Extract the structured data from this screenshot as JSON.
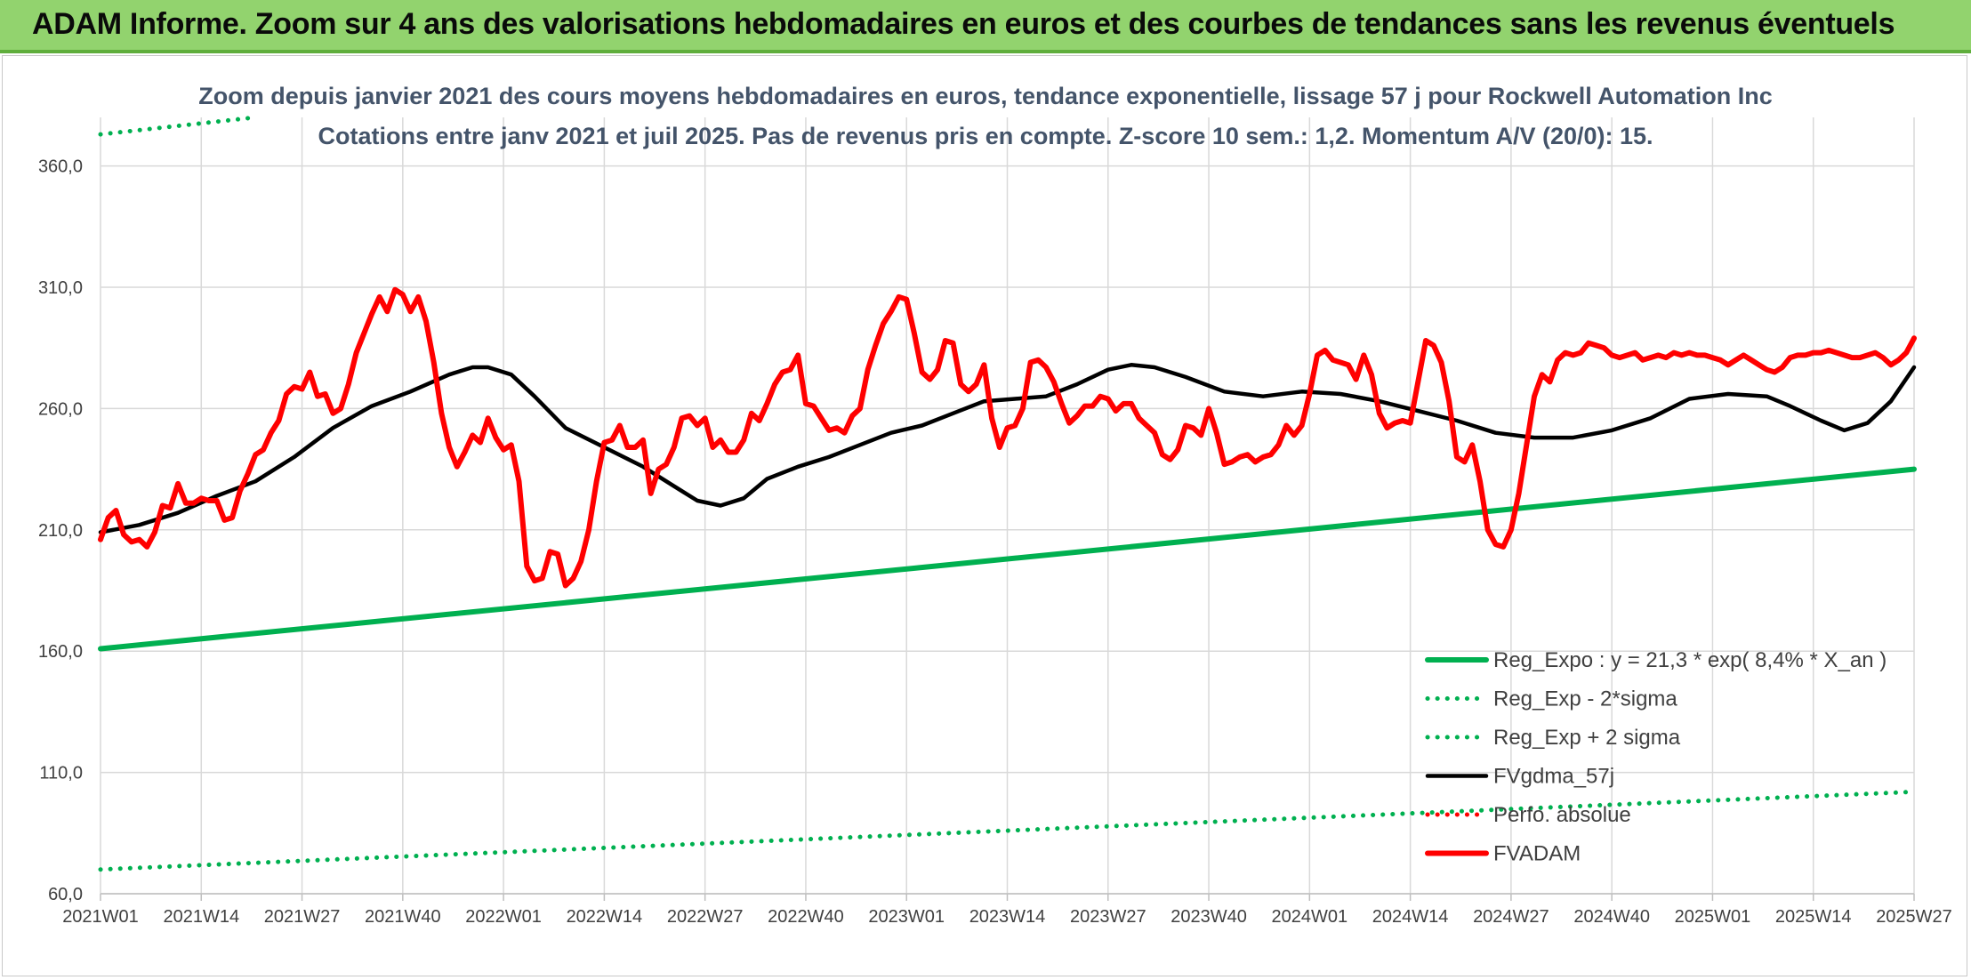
{
  "header": {
    "title": "ADAM Informe. Zoom sur 4 ans des valorisations hebdomadaires en euros et des courbes de tendances sans les revenus éventuels"
  },
  "chart_data": {
    "type": "line",
    "title": "Zoom depuis janvier 2021 des cours moyens hebdomadaires en euros, tendance exponentielle, lissage 57 j pour Rockwell Automation Inc",
    "subtitle": "Cotations entre janv 2021 et juil 2025. Pas de revenus pris en compte. Z-score 10 sem.: 1,2. Momentum A/V (20/0): 15.",
    "xlabel": "",
    "ylabel": "",
    "ylim": [
      60,
      380
    ],
    "yticks": [
      "60,0",
      "110,0",
      "160,0",
      "210,0",
      "260,0",
      "310,0",
      "360,0"
    ],
    "x_range": [
      0,
      234
    ],
    "xticks": [
      {
        "x": 0,
        "label": "2021W01"
      },
      {
        "x": 13,
        "label": "2021W14"
      },
      {
        "x": 26,
        "label": "2021W27"
      },
      {
        "x": 39,
        "label": "2021W40"
      },
      {
        "x": 52,
        "label": "2022W01"
      },
      {
        "x": 65,
        "label": "2022W14"
      },
      {
        "x": 78,
        "label": "2022W27"
      },
      {
        "x": 91,
        "label": "2022W40"
      },
      {
        "x": 104,
        "label": "2023W01"
      },
      {
        "x": 117,
        "label": "2023W14"
      },
      {
        "x": 130,
        "label": "2023W27"
      },
      {
        "x": 143,
        "label": "2023W40"
      },
      {
        "x": 156,
        "label": "2024W01"
      },
      {
        "x": 169,
        "label": "2024W14"
      },
      {
        "x": 182,
        "label": "2024W27"
      },
      {
        "x": 195,
        "label": "2024W40"
      },
      {
        "x": 208,
        "label": "2025W01"
      },
      {
        "x": 221,
        "label": "2025W14"
      },
      {
        "x": 234,
        "label": "2025W27"
      }
    ],
    "grid": true,
    "legend_position": "bottom-right",
    "series": [
      {
        "name": "Reg_Expo : y = 21,3 * exp( 8,4% *  X_an )",
        "color": "#00b050",
        "style": "solid-thick",
        "points": [
          [
            0,
            161
          ],
          [
            234,
            235
          ]
        ]
      },
      {
        "name": "Reg_Exp - 2*sigma",
        "color": "#00b050",
        "style": "dotted",
        "points": [
          [
            0,
            70
          ],
          [
            234,
            102
          ]
        ]
      },
      {
        "name": "Reg_Exp + 2 sigma",
        "color": "#00b050",
        "style": "dotted",
        "points": [
          [
            0,
            373
          ],
          [
            20,
            380
          ]
        ]
      },
      {
        "name": "FVgdma_57j",
        "color": "#000000",
        "style": "solid",
        "points": [
          [
            0,
            209
          ],
          [
            5,
            212
          ],
          [
            10,
            217
          ],
          [
            15,
            224
          ],
          [
            20,
            230
          ],
          [
            25,
            240
          ],
          [
            30,
            252
          ],
          [
            35,
            261
          ],
          [
            40,
            267
          ],
          [
            45,
            274
          ],
          [
            48,
            277
          ],
          [
            50,
            277
          ],
          [
            53,
            274
          ],
          [
            56,
            265
          ],
          [
            60,
            252
          ],
          [
            65,
            244
          ],
          [
            70,
            236
          ],
          [
            74,
            228
          ],
          [
            77,
            222
          ],
          [
            80,
            220
          ],
          [
            83,
            223
          ],
          [
            86,
            231
          ],
          [
            90,
            236
          ],
          [
            94,
            240
          ],
          [
            98,
            245
          ],
          [
            102,
            250
          ],
          [
            106,
            253
          ],
          [
            110,
            258
          ],
          [
            114,
            263
          ],
          [
            118,
            264
          ],
          [
            122,
            265
          ],
          [
            126,
            270
          ],
          [
            130,
            276
          ],
          [
            133,
            278
          ],
          [
            136,
            277
          ],
          [
            140,
            273
          ],
          [
            145,
            267
          ],
          [
            150,
            265
          ],
          [
            155,
            267
          ],
          [
            160,
            266
          ],
          [
            165,
            263
          ],
          [
            170,
            259
          ],
          [
            175,
            255
          ],
          [
            180,
            250
          ],
          [
            185,
            248
          ],
          [
            190,
            248
          ],
          [
            195,
            251
          ],
          [
            200,
            256
          ],
          [
            205,
            264
          ],
          [
            210,
            266
          ],
          [
            215,
            265
          ],
          [
            218,
            261
          ],
          [
            222,
            255
          ],
          [
            225,
            251
          ],
          [
            228,
            254
          ],
          [
            231,
            263
          ],
          [
            234,
            277
          ]
        ]
      },
      {
        "name": "Perfo. absolue",
        "color": "#ff0000",
        "style": "dotted",
        "points": []
      },
      {
        "name": "FVADAM",
        "color": "#ff0000",
        "style": "solid-thick",
        "points": [
          [
            0,
            206
          ],
          [
            1,
            215
          ],
          [
            2,
            218
          ],
          [
            3,
            208
          ],
          [
            4,
            205
          ],
          [
            5,
            206
          ],
          [
            6,
            203
          ],
          [
            7,
            209
          ],
          [
            8,
            220
          ],
          [
            9,
            219
          ],
          [
            10,
            229
          ],
          [
            11,
            221
          ],
          [
            12,
            221
          ],
          [
            13,
            223
          ],
          [
            14,
            222
          ],
          [
            15,
            222
          ],
          [
            16,
            214
          ],
          [
            17,
            215
          ],
          [
            18,
            226
          ],
          [
            19,
            233
          ],
          [
            20,
            241
          ],
          [
            21,
            243
          ],
          [
            22,
            250
          ],
          [
            23,
            255
          ],
          [
            24,
            266
          ],
          [
            25,
            269
          ],
          [
            26,
            268
          ],
          [
            27,
            275
          ],
          [
            28,
            265
          ],
          [
            29,
            266
          ],
          [
            30,
            258
          ],
          [
            31,
            260
          ],
          [
            32,
            270
          ],
          [
            33,
            283
          ],
          [
            34,
            291
          ],
          [
            35,
            299
          ],
          [
            36,
            306
          ],
          [
            37,
            300
          ],
          [
            38,
            309
          ],
          [
            39,
            307
          ],
          [
            40,
            300
          ],
          [
            41,
            306
          ],
          [
            42,
            296
          ],
          [
            43,
            279
          ],
          [
            44,
            258
          ],
          [
            45,
            244
          ],
          [
            46,
            236
          ],
          [
            47,
            242
          ],
          [
            48,
            249
          ],
          [
            49,
            246
          ],
          [
            50,
            256
          ],
          [
            51,
            248
          ],
          [
            52,
            243
          ],
          [
            53,
            245
          ],
          [
            54,
            230
          ],
          [
            55,
            195
          ],
          [
            56,
            189
          ],
          [
            57,
            190
          ],
          [
            58,
            201
          ],
          [
            59,
            200
          ],
          [
            60,
            187
          ],
          [
            61,
            190
          ],
          [
            62,
            197
          ],
          [
            63,
            210
          ],
          [
            64,
            230
          ],
          [
            65,
            246
          ],
          [
            66,
            247
          ],
          [
            67,
            253
          ],
          [
            68,
            244
          ],
          [
            69,
            244
          ],
          [
            70,
            247
          ],
          [
            71,
            225
          ],
          [
            72,
            235
          ],
          [
            73,
            237
          ],
          [
            74,
            244
          ],
          [
            75,
            256
          ],
          [
            76,
            257
          ],
          [
            77,
            253
          ],
          [
            78,
            256
          ],
          [
            79,
            244
          ],
          [
            80,
            247
          ],
          [
            81,
            242
          ],
          [
            82,
            242
          ],
          [
            83,
            247
          ],
          [
            84,
            258
          ],
          [
            85,
            255
          ],
          [
            86,
            262
          ],
          [
            87,
            270
          ],
          [
            88,
            275
          ],
          [
            89,
            276
          ],
          [
            90,
            282
          ],
          [
            91,
            262
          ],
          [
            92,
            261
          ],
          [
            93,
            256
          ],
          [
            94,
            251
          ],
          [
            95,
            252
          ],
          [
            96,
            250
          ],
          [
            97,
            257
          ],
          [
            98,
            260
          ],
          [
            99,
            276
          ],
          [
            100,
            286
          ],
          [
            101,
            295
          ],
          [
            102,
            300
          ],
          [
            103,
            306
          ],
          [
            104,
            305
          ],
          [
            105,
            291
          ],
          [
            106,
            275
          ],
          [
            107,
            272
          ],
          [
            108,
            276
          ],
          [
            109,
            288
          ],
          [
            110,
            287
          ],
          [
            111,
            270
          ],
          [
            112,
            267
          ],
          [
            113,
            270
          ],
          [
            114,
            278
          ],
          [
            115,
            256
          ],
          [
            116,
            244
          ],
          [
            117,
            252
          ],
          [
            118,
            253
          ],
          [
            119,
            260
          ],
          [
            120,
            279
          ],
          [
            121,
            280
          ],
          [
            122,
            277
          ],
          [
            123,
            271
          ],
          [
            124,
            262
          ],
          [
            125,
            254
          ],
          [
            126,
            257
          ],
          [
            127,
            261
          ],
          [
            128,
            261
          ],
          [
            129,
            265
          ],
          [
            130,
            264
          ],
          [
            131,
            259
          ],
          [
            132,
            262
          ],
          [
            133,
            262
          ],
          [
            134,
            256
          ],
          [
            135,
            253
          ],
          [
            136,
            250
          ],
          [
            137,
            241
          ],
          [
            138,
            239
          ],
          [
            139,
            243
          ],
          [
            140,
            253
          ],
          [
            141,
            252
          ],
          [
            142,
            249
          ],
          [
            143,
            260
          ],
          [
            144,
            250
          ],
          [
            145,
            237
          ],
          [
            146,
            238
          ],
          [
            147,
            240
          ],
          [
            148,
            241
          ],
          [
            149,
            238
          ],
          [
            150,
            240
          ],
          [
            151,
            241
          ],
          [
            152,
            245
          ],
          [
            153,
            253
          ],
          [
            154,
            249
          ],
          [
            155,
            253
          ],
          [
            156,
            266
          ],
          [
            157,
            282
          ],
          [
            158,
            284
          ],
          [
            159,
            280
          ],
          [
            160,
            279
          ],
          [
            161,
            278
          ],
          [
            162,
            272
          ],
          [
            163,
            282
          ],
          [
            164,
            274
          ],
          [
            165,
            258
          ],
          [
            166,
            252
          ],
          [
            167,
            254
          ],
          [
            168,
            255
          ],
          [
            169,
            254
          ],
          [
            170,
            271
          ],
          [
            171,
            288
          ],
          [
            172,
            286
          ],
          [
            173,
            279
          ],
          [
            174,
            263
          ],
          [
            175,
            240
          ],
          [
            176,
            238
          ],
          [
            177,
            245
          ],
          [
            178,
            230
          ],
          [
            179,
            210
          ],
          [
            180,
            204
          ],
          [
            181,
            203
          ],
          [
            182,
            210
          ],
          [
            183,
            225
          ],
          [
            184,
            245
          ],
          [
            185,
            265
          ],
          [
            186,
            274
          ],
          [
            187,
            271
          ],
          [
            188,
            280
          ],
          [
            189,
            283
          ],
          [
            190,
            282
          ],
          [
            191,
            283
          ],
          [
            192,
            287
          ],
          [
            193,
            286
          ],
          [
            194,
            285
          ],
          [
            195,
            282
          ],
          [
            196,
            281
          ],
          [
            197,
            282
          ],
          [
            198,
            283
          ],
          [
            199,
            280
          ],
          [
            200,
            281
          ],
          [
            201,
            282
          ],
          [
            202,
            281
          ],
          [
            203,
            283
          ],
          [
            204,
            282
          ],
          [
            205,
            283
          ],
          [
            206,
            282
          ],
          [
            207,
            282
          ],
          [
            208,
            281
          ],
          [
            209,
            280
          ],
          [
            210,
            278
          ],
          [
            211,
            280
          ],
          [
            212,
            282
          ],
          [
            213,
            280
          ],
          [
            214,
            278
          ],
          [
            215,
            276
          ],
          [
            216,
            275
          ],
          [
            217,
            277
          ],
          [
            218,
            281
          ],
          [
            219,
            282
          ],
          [
            220,
            282
          ],
          [
            221,
            283
          ],
          [
            222,
            283
          ],
          [
            223,
            284
          ],
          [
            224,
            283
          ],
          [
            225,
            282
          ],
          [
            226,
            281
          ],
          [
            227,
            281
          ],
          [
            228,
            282
          ],
          [
            229,
            283
          ],
          [
            230,
            281
          ],
          [
            231,
            278
          ],
          [
            232,
            280
          ],
          [
            233,
            283
          ],
          [
            234,
            289
          ]
        ]
      }
    ]
  }
}
